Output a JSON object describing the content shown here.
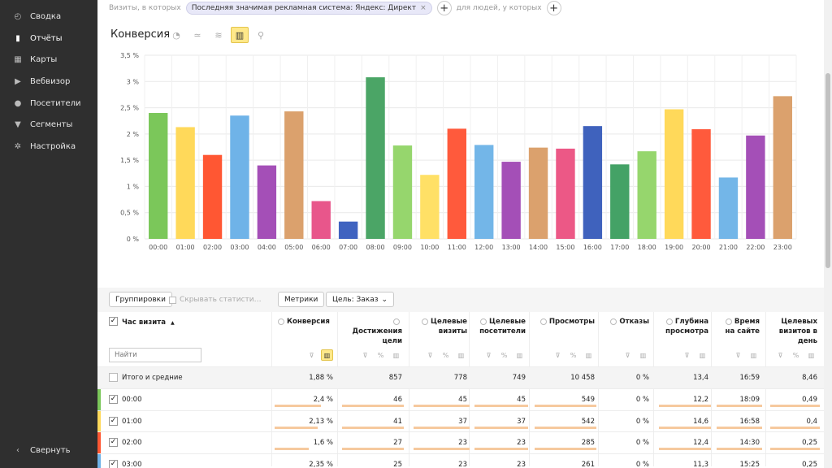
{
  "sidebar": {
    "items": [
      {
        "label": "Сводка",
        "icon": "dashboard-icon",
        "glyph": "◴",
        "active": false
      },
      {
        "label": "Отчёты",
        "icon": "reports-icon",
        "glyph": "▮",
        "active": true
      },
      {
        "label": "Карты",
        "icon": "maps-icon",
        "glyph": "▦",
        "active": false
      },
      {
        "label": "Вебвизор",
        "icon": "webvisor-icon",
        "glyph": "▶",
        "active": false
      },
      {
        "label": "Посетители",
        "icon": "visitors-icon",
        "glyph": "●",
        "active": false
      },
      {
        "label": "Сегменты",
        "icon": "segments-icon",
        "glyph": "▼",
        "active": false
      },
      {
        "label": "Настройка",
        "icon": "settings-icon",
        "glyph": "✲",
        "active": false
      }
    ],
    "collapse_label": "Свернуть",
    "collapse_glyph": "‹"
  },
  "filter": {
    "prefix": "Визиты, в которых",
    "chip": "Последняя значимая рекламная система: Яндекс: Директ",
    "chip_close": "×",
    "plus": "+",
    "suffix": "для людей, у которых"
  },
  "chart_header": {
    "title": "Конверсия",
    "types": [
      {
        "name": "pie-chart-icon",
        "glyph": "◔",
        "active": false
      },
      {
        "name": "line-chart-icon",
        "glyph": "≃",
        "active": false
      },
      {
        "name": "area-chart-icon",
        "glyph": "≋",
        "active": false
      },
      {
        "name": "bar-chart-icon",
        "glyph": "▥",
        "active": true
      },
      {
        "name": "map-pin-icon",
        "glyph": "⚲",
        "active": false
      }
    ]
  },
  "chart_data": {
    "type": "bar",
    "title": "",
    "xlabel": "",
    "ylabel": "",
    "ylim": [
      0,
      3.5
    ],
    "yticks": [
      "0 %",
      "0,5 %",
      "1 %",
      "1,5 %",
      "2 %",
      "2,5 %",
      "3 %",
      "3,5 %"
    ],
    "grid": true,
    "categories": [
      "00:00",
      "01:00",
      "02:00",
      "03:00",
      "04:00",
      "05:00",
      "06:00",
      "07:00",
      "08:00",
      "09:00",
      "10:00",
      "11:00",
      "12:00",
      "13:00",
      "14:00",
      "15:00",
      "16:00",
      "17:00",
      "18:00",
      "19:00",
      "20:00",
      "21:00",
      "22:00",
      "23:00"
    ],
    "values": [
      2.4,
      2.13,
      1.6,
      2.35,
      1.4,
      2.43,
      0.72,
      0.33,
      3.08,
      1.78,
      1.22,
      2.1,
      1.79,
      1.47,
      1.74,
      1.72,
      2.15,
      1.42,
      1.67,
      2.47,
      2.09,
      1.17,
      1.97,
      2.72
    ],
    "colors": [
      "#7bc75a",
      "#ffd95a",
      "#ff5733",
      "#6fb3e8",
      "#a44fb7",
      "#dba16d",
      "#e8568b",
      "#3f63c0",
      "#4ba566",
      "#96d66d",
      "#ffe066",
      "#ff5a3c",
      "#73b6e8",
      "#a44fb7",
      "#dba16d",
      "#ec5886",
      "#3f62bd",
      "#44a266",
      "#96d66d",
      "#ffd95a",
      "#ff5a3c",
      "#73b6e8",
      "#a44fb7",
      "#dba16d"
    ]
  },
  "toolbar": {
    "groupings": "Группировки",
    "hide_stats": "Скрывать статисти…",
    "metrics": "Метрики",
    "goal": "Цель: Заказ",
    "goal_caret": "⌄"
  },
  "table": {
    "dimension_header": "Час визита",
    "sort_glyph": "▲",
    "search_placeholder": "Найти",
    "columns": [
      {
        "label": "Конверсия",
        "info": true
      },
      {
        "label": "Достижения цели",
        "info": true
      },
      {
        "label": "Целевые визиты",
        "info": true
      },
      {
        "label": "Целевые посетители",
        "info": true
      },
      {
        "label": "Просмотры",
        "info": true
      },
      {
        "label": "Отказы",
        "info": true
      },
      {
        "label": "Глубина просмотра",
        "info": true
      },
      {
        "label": "Время на сайте",
        "info": true
      },
      {
        "label": "Целевых визитов в день",
        "info": false
      }
    ],
    "total_label": "Итого и средние",
    "total": [
      "1,88 %",
      "857",
      "778",
      "749",
      "10 458",
      "0 %",
      "13,4",
      "16:59",
      "8,46"
    ],
    "check_glyph": "✓",
    "rows": [
      {
        "label": "00:00",
        "color": "#7bc75a",
        "cells": [
          "2,4 %",
          "46",
          "45",
          "45",
          "549",
          "0 %",
          "12,2",
          "18:09",
          "0,49"
        ]
      },
      {
        "label": "01:00",
        "color": "#ffd95a",
        "cells": [
          "2,13 %",
          "41",
          "37",
          "37",
          "542",
          "0 %",
          "14,6",
          "16:58",
          "0,4"
        ]
      },
      {
        "label": "02:00",
        "color": "#ff5733",
        "cells": [
          "1,6 %",
          "27",
          "23",
          "23",
          "285",
          "0 %",
          "12,4",
          "14:30",
          "0,25"
        ]
      },
      {
        "label": "03:00",
        "color": "#6fb3e8",
        "cells": [
          "2,35 %",
          "25",
          "23",
          "23",
          "261",
          "0 %",
          "11,3",
          "15:25",
          "0,25"
        ]
      }
    ]
  }
}
